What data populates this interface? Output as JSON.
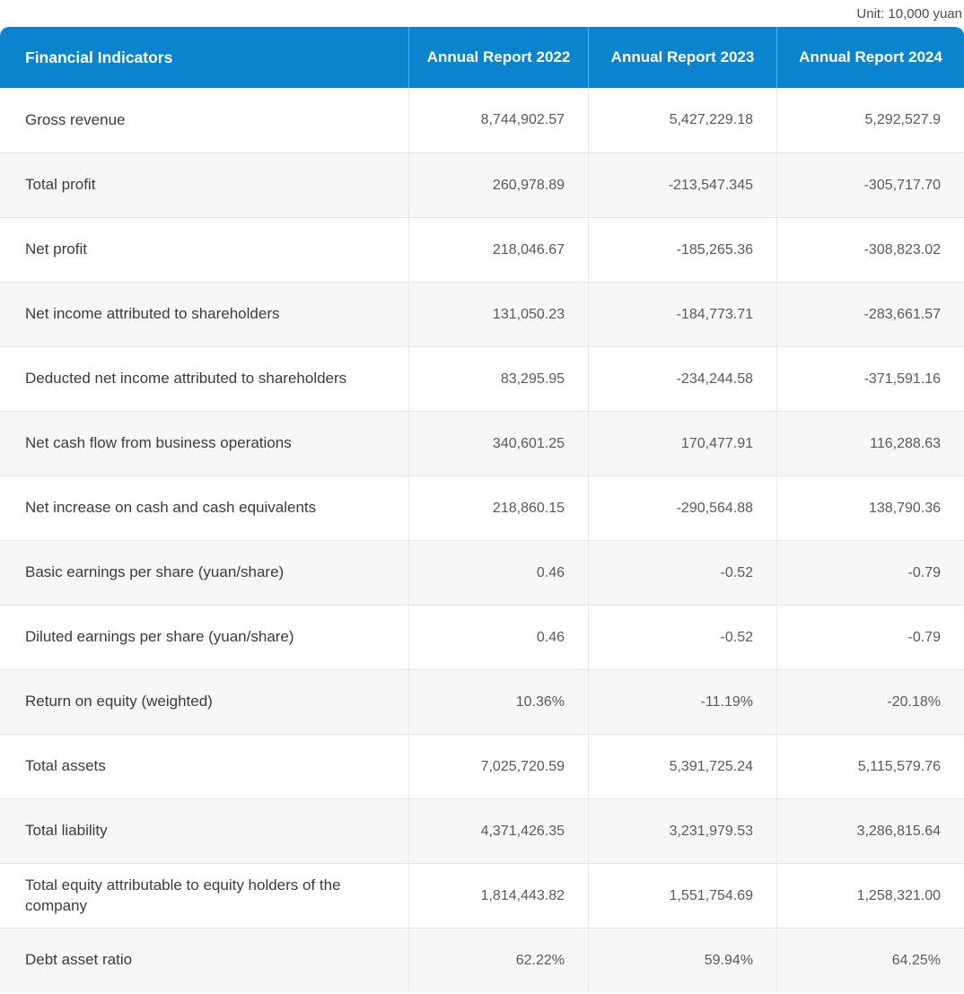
{
  "unit_label": "Unit: 10,000 yuan",
  "chart_data": {
    "type": "table",
    "title": "Financial Indicators",
    "columns": [
      "Financial Indicators",
      "Annual Report 2022",
      "Annual Report 2023",
      "Annual Report 2024"
    ],
    "rows": [
      {
        "label": "Gross revenue",
        "values": [
          "8,744,902.57",
          "5,427,229.18",
          "5,292,527.9"
        ]
      },
      {
        "label": "Total profit",
        "values": [
          "260,978.89",
          "-213,547.345",
          "-305,717.70"
        ]
      },
      {
        "label": "Net profit",
        "values": [
          "218,046.67",
          "-185,265.36",
          "-308,823.02"
        ]
      },
      {
        "label": "Net income attributed to shareholders",
        "values": [
          "131,050.23",
          "-184,773.71",
          "-283,661.57"
        ]
      },
      {
        "label": "Deducted net income attributed to shareholders",
        "values": [
          "83,295.95",
          "-234,244.58",
          "-371,591.16"
        ]
      },
      {
        "label": "Net cash flow from business operations",
        "values": [
          "340,601.25",
          "170,477.91",
          "116,288.63"
        ]
      },
      {
        "label": "Net increase on cash and cash equivalents",
        "values": [
          "218,860.15",
          "-290,564.88",
          "138,790.36"
        ]
      },
      {
        "label": "Basic earnings per share (yuan/share)",
        "values": [
          "0.46",
          "-0.52",
          "-0.79"
        ]
      },
      {
        "label": "Diluted earnings per share (yuan/share)",
        "values": [
          "0.46",
          "-0.52",
          "-0.79"
        ]
      },
      {
        "label": "Return on equity (weighted)",
        "values": [
          "10.36%",
          "-11.19%",
          "-20.18%"
        ]
      },
      {
        "label": "Total assets",
        "values": [
          "7,025,720.59",
          "5,391,725.24",
          "5,115,579.76"
        ]
      },
      {
        "label": "Total liability",
        "values": [
          "4,371,426.35",
          "3,231,979.53",
          "3,286,815.64"
        ]
      },
      {
        "label": "Total equity attributable to equity holders of the company",
        "values": [
          "1,814,443.82",
          "1,551,754.69",
          "1,258,321.00"
        ]
      },
      {
        "label": "Debt asset ratio",
        "values": [
          "62.22%",
          "59.94%",
          "64.25%"
        ]
      }
    ]
  },
  "colors": {
    "header_bg": "#0984cd",
    "header_text": "#ffffff",
    "row_bg": "#ffffff",
    "row_alt_bg": "#f7f7f7",
    "label_text": "#3b3b3b",
    "value_text": "#595959",
    "divider": "#e4e4e4"
  }
}
